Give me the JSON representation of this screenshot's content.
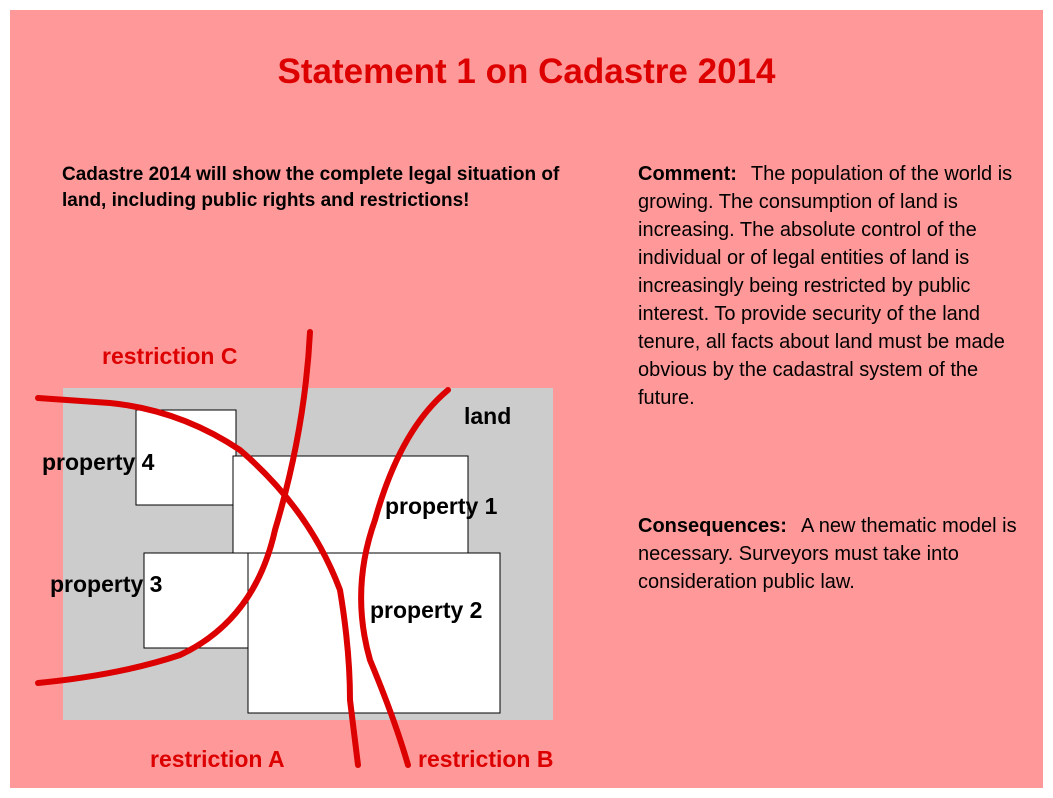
{
  "title": "Statement 1 on Cadastre 2014",
  "statement": "Cadastre 2014 will show the complete legal situation of land, including public rights and restrictions!",
  "diagram": {
    "land": "land",
    "properties": [
      "property 1",
      "property 2",
      "property 3",
      "property 4"
    ],
    "restrictions": [
      "restriction A",
      "restriction B",
      "restriction C"
    ]
  },
  "comment": {
    "label": "Comment:",
    "text": "The population of the world is growing. The consumption of land is increasing. The absolute control of the individual or of legal entities of land is increasingly being restricted by public interest. To provide security of the land tenure, all facts about land must be made obvious by the cadastral system of the future."
  },
  "consequences": {
    "label": "Consequences:",
    "text": "A new thematic model is necessary. Surveyors must take into consideration public law."
  }
}
